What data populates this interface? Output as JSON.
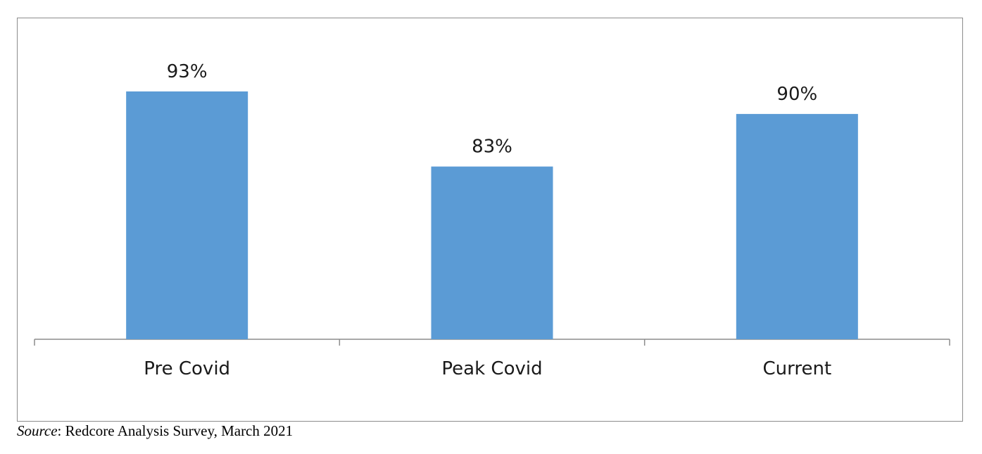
{
  "chart_data": {
    "type": "bar",
    "categories": [
      "Pre Covid",
      "Peak Covid",
      "Current"
    ],
    "values": [
      93,
      83,
      90
    ],
    "value_labels": [
      "93%",
      "83%",
      "90%"
    ],
    "value_unit": "%",
    "ylim": [
      60,
      100
    ],
    "grid": false,
    "legend": "none",
    "bar_color": "#5B9BD5",
    "axis_color": "#8c8c8c"
  },
  "source": {
    "label": "Source",
    "separator": ":",
    "text": " Redcore Analysis Survey, March 2021"
  }
}
